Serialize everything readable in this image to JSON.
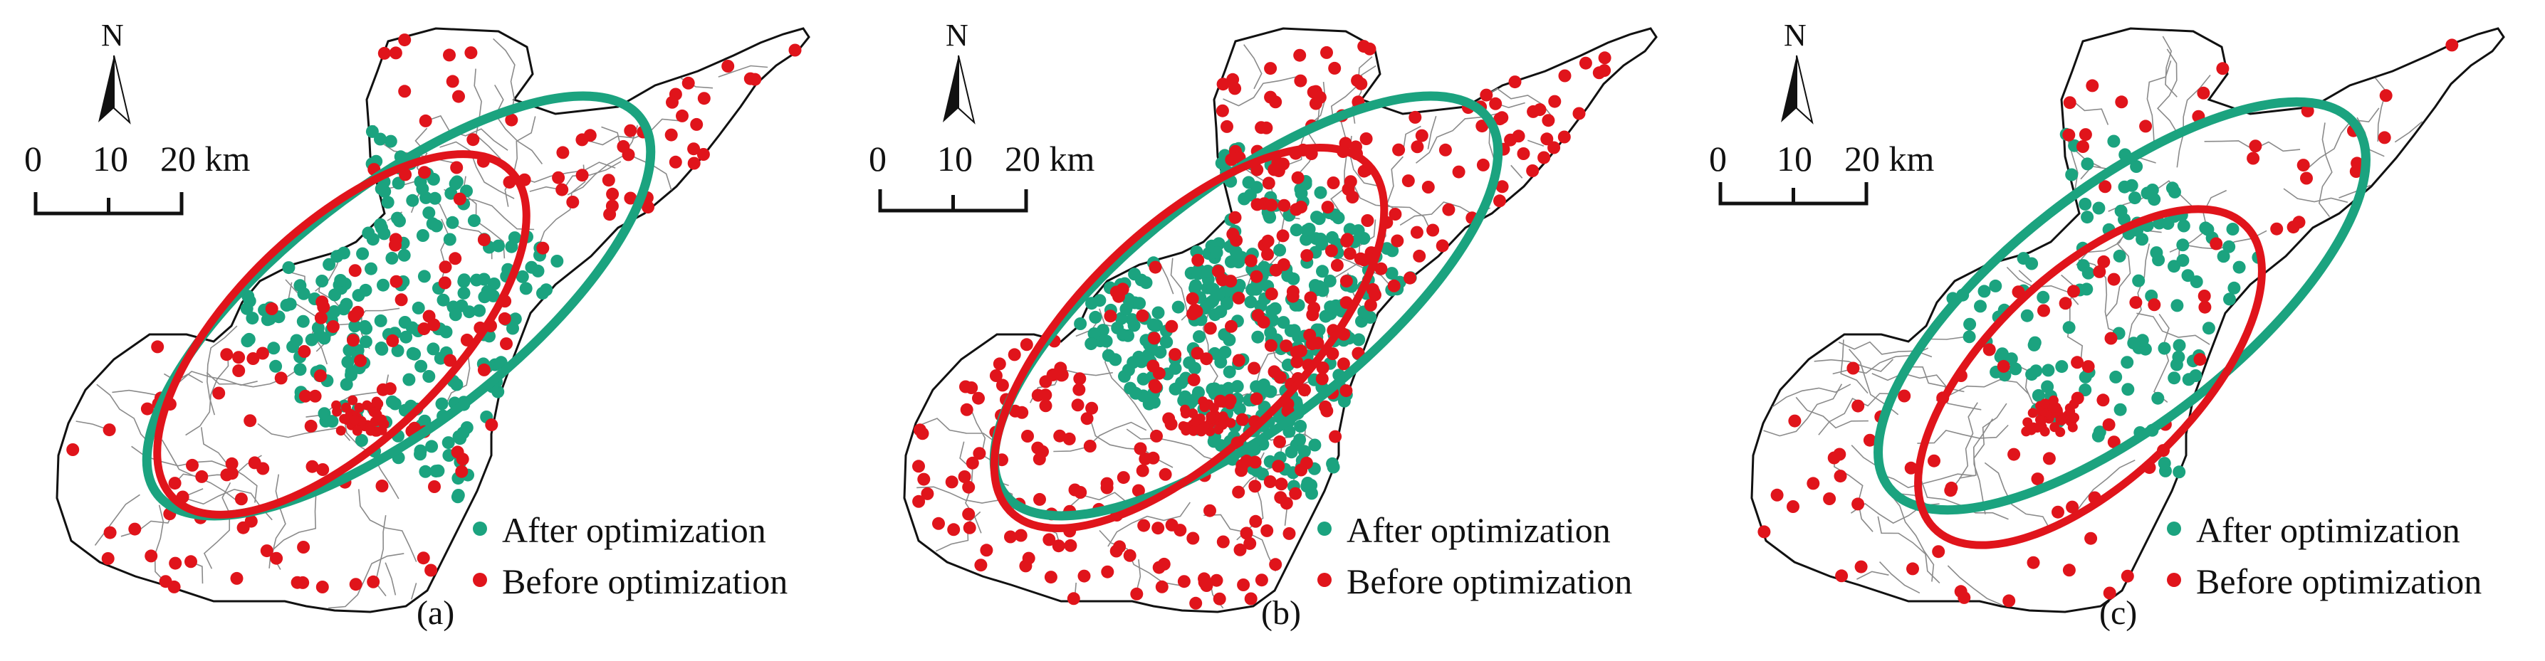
{
  "legend": {
    "after": {
      "label": "After optimization",
      "color": "#1ba37f"
    },
    "before": {
      "label": "Before optimization",
      "color": "#e0141b"
    }
  },
  "north_label": "N",
  "scale_bar": {
    "ticks": [
      "0",
      "10",
      "20 km"
    ]
  },
  "panels": [
    {
      "label": "(a)"
    },
    {
      "label": "(b)"
    },
    {
      "label": "(c)"
    }
  ],
  "colors": {
    "boundary": "#111111",
    "internal": "#8a8a8a"
  }
}
